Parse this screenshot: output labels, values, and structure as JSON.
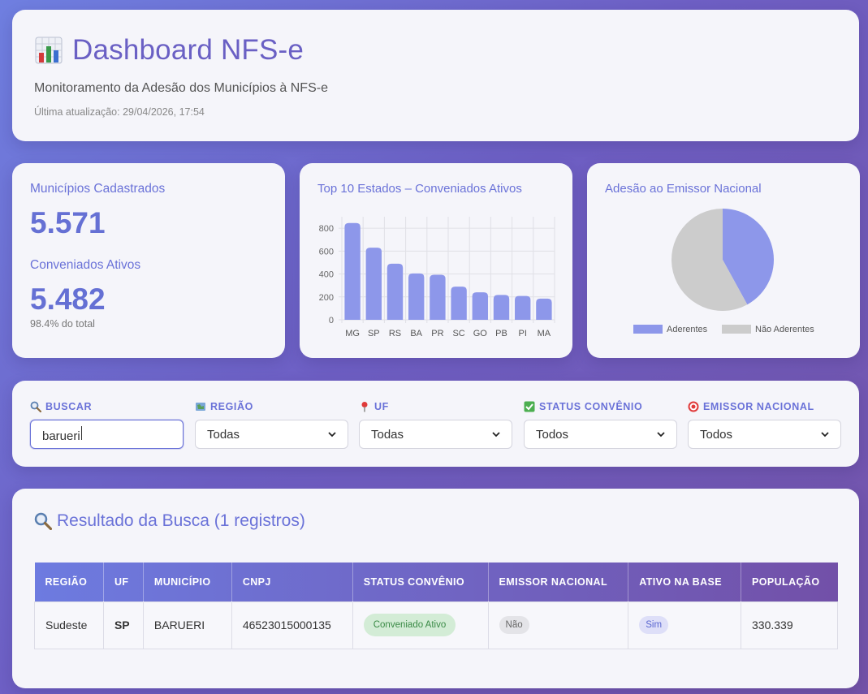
{
  "header": {
    "title": "Dashboard NFS-e",
    "subtitle": "Monitoramento da Adesão dos Municípios à NFS-e",
    "updated": "Última atualização: 29/04/2026, 17:54"
  },
  "stats": {
    "municipios_label": "Municípios Cadastrados",
    "municipios_value": "5.571",
    "conveniados_label": "Conveniados Ativos",
    "conveniados_value": "5.482",
    "conveniados_note": "98.4% do total"
  },
  "bar_title": "Top 10 Estados – Conveniados Ativos",
  "pie_title": "Adesão ao Emissor Nacional",
  "chart_data": [
    {
      "type": "bar",
      "title": "Top 10 Estados – Conveniados Ativos",
      "categories": [
        "MG",
        "SP",
        "RS",
        "BA",
        "PR",
        "SC",
        "GO",
        "PB",
        "PI",
        "MA"
      ],
      "values": [
        845,
        630,
        490,
        405,
        393,
        290,
        240,
        217,
        208,
        185
      ],
      "ylim": [
        0,
        900
      ],
      "yticks": [
        "0",
        "200",
        "400",
        "600",
        "800"
      ],
      "color": "#8d97ea",
      "grid": true
    },
    {
      "type": "pie",
      "title": "Adesão ao Emissor Nacional",
      "labels": [
        "Aderentes",
        "Não Aderentes"
      ],
      "values": [
        42,
        58
      ],
      "colors": [
        "#8d97ea",
        "#cccccc"
      ],
      "legend": "bottom"
    }
  ],
  "filters": {
    "search_label": "BUSCAR",
    "search_value": "barueri",
    "regiao_label": "REGIÃO",
    "regiao_value": "Todas",
    "uf_label": "UF",
    "uf_value": "Todas",
    "status_label": "STATUS CONVÊNIO",
    "status_value": "Todos",
    "emissor_label": "EMISSOR NACIONAL",
    "emissor_value": "Todos"
  },
  "results": {
    "title": "Resultado da Busca (1 registros)",
    "columns": [
      "REGIÃO",
      "UF",
      "MUNICÍPIO",
      "CNPJ",
      "STATUS CONVÊNIO",
      "EMISSOR NACIONAL",
      "ATIVO NA BASE",
      "POPULAÇÃO"
    ],
    "rows": [
      {
        "regiao": "Sudeste",
        "uf": "SP",
        "municipio": "BARUERI",
        "cnpj": "46523015000135",
        "status": "Conveniado Ativo",
        "emissor": "Não",
        "ativo": "Sim",
        "populacao": "330.339"
      }
    ]
  }
}
